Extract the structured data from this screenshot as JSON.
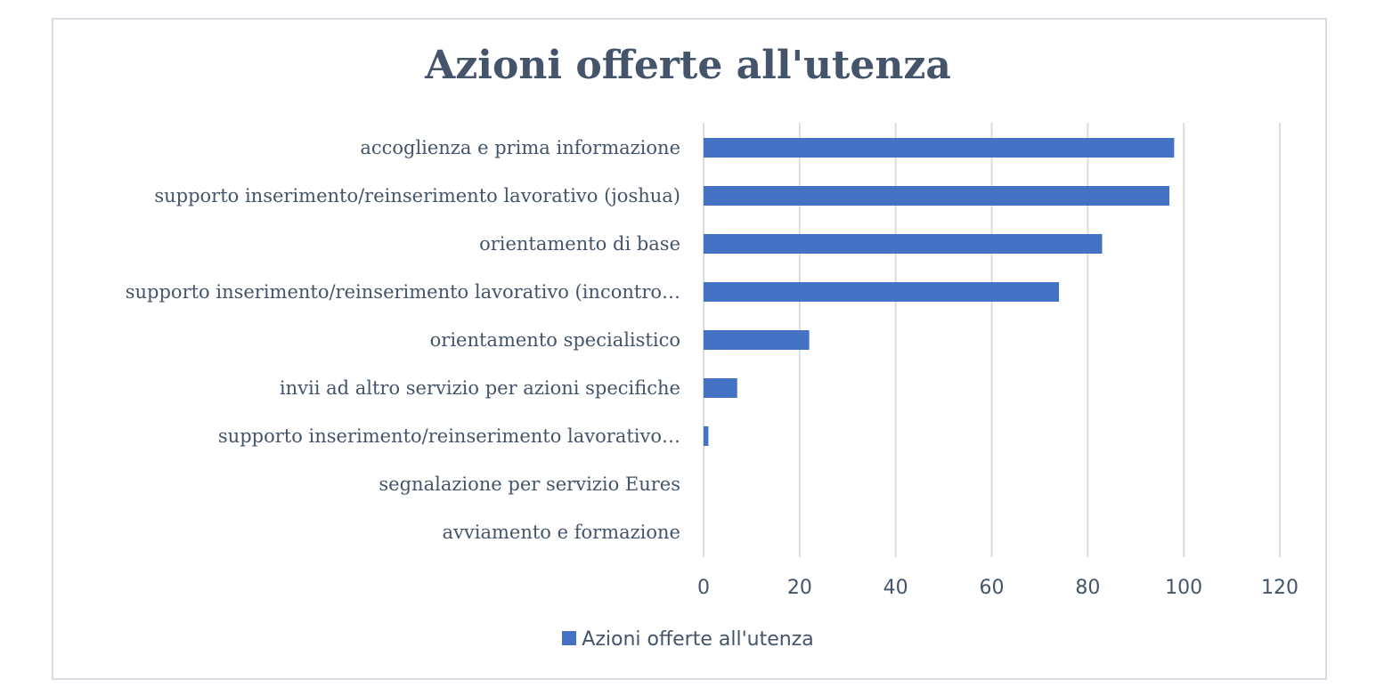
{
  "chart_data": {
    "type": "bar",
    "orientation": "horizontal",
    "title": "Azioni offerte all'utenza",
    "categories": [
      "accoglienza e prima informazione",
      "supporto inserimento/reinserimento lavorativo (joshua)",
      "orientamento di base",
      "supporto inserimento/reinserimento lavorativo (incontro…",
      "orientamento specialistico",
      "invii ad altro servizio per azioni specifiche",
      "supporto inserimento/reinserimento lavorativo…",
      "segnalazione per servizio Eures",
      "avviamento e formazione"
    ],
    "series": [
      {
        "name": "Azioni offerte all'utenza",
        "values": [
          98,
          97,
          83,
          74,
          22,
          7,
          1,
          0,
          0
        ]
      }
    ],
    "xlim": [
      0,
      120
    ],
    "xticks": [
      0,
      20,
      40,
      60,
      80,
      100,
      120
    ],
    "grid": true,
    "legend_position": "bottom",
    "bar_color": "#4472c4",
    "grid_color": "#d9dde3",
    "text_color": "#44546a"
  }
}
